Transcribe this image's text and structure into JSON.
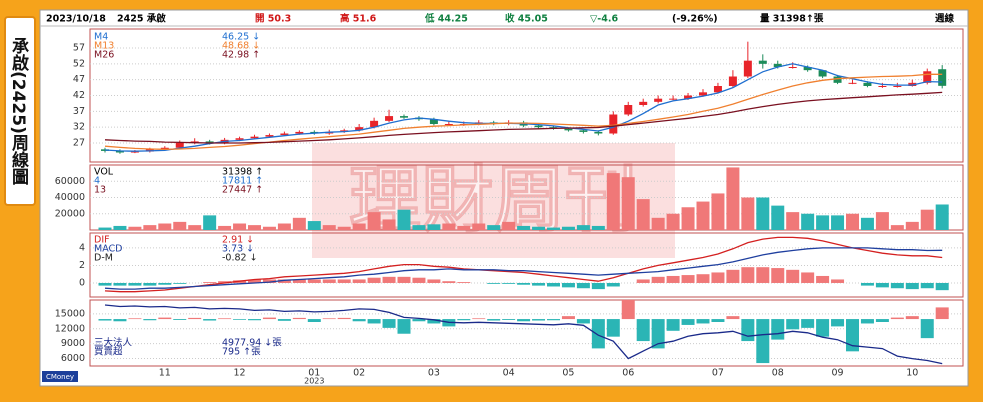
{
  "side_title": "承啟(2425)周線圖",
  "header": {
    "items": [
      {
        "text": "2023/10/18",
        "color": "#000000"
      },
      {
        "text": "2425 承啟",
        "color": "#000000"
      },
      {
        "text": "開 50.3",
        "color": "#d01818"
      },
      {
        "text": "高 51.6",
        "color": "#d01818"
      },
      {
        "text": "低 44.25",
        "color": "#108040"
      },
      {
        "text": "收 45.05",
        "color": "#108040"
      },
      {
        "text": "▽-4.6",
        "color": "#108040"
      },
      {
        "text": "(-9.26%)",
        "color": "#000000"
      },
      {
        "text": "量 31398↑張",
        "color": "#000000"
      },
      {
        "text": "週線",
        "color": "#000000"
      }
    ]
  },
  "watermark": "理財周刊",
  "logo": "CMoney",
  "chart_data": [
    {
      "type": "candlestick",
      "up_color": "#e8242a",
      "down_color": "#1c8c5a",
      "open": [
        25,
        24.5,
        24,
        24.3,
        25,
        25.5,
        27,
        27.5,
        27,
        28,
        28.5,
        29,
        29.5,
        30,
        30.5,
        30,
        30.5,
        31,
        32,
        34,
        35.5,
        35,
        34.5,
        33,
        33,
        33,
        33.5,
        33,
        33.5,
        32.5,
        32,
        31.5,
        31,
        30.5,
        30,
        36,
        39,
        40,
        41,
        41,
        42,
        43,
        45,
        48,
        53,
        52,
        51,
        51,
        50,
        48,
        46,
        46,
        45,
        45,
        45,
        46,
        50.3
      ],
      "high": [
        25.5,
        25,
        24.8,
        25.5,
        26,
        27.8,
        28.5,
        28,
        28.6,
        29,
        29.6,
        30,
        30.6,
        31,
        31,
        31.2,
        31.5,
        33,
        35,
        37.5,
        36,
        35.5,
        35,
        34,
        33.8,
        34.2,
        34,
        34.2,
        34,
        33,
        32.2,
        31.8,
        31.2,
        31,
        37,
        40,
        41,
        42,
        42,
        42.8,
        44,
        46,
        50,
        59,
        55,
        53,
        52.5,
        51.5,
        50,
        48.5,
        47,
        46.5,
        46,
        46,
        47,
        50.5,
        51.6
      ],
      "low": [
        24,
        23.6,
        23.8,
        24,
        24.6,
        25.2,
        26.6,
        26.5,
        26.6,
        27.6,
        28.2,
        28.6,
        29.2,
        29.6,
        29.6,
        29.6,
        30.2,
        30.6,
        31.6,
        33.6,
        34.6,
        34,
        32.6,
        32.4,
        32.4,
        32.6,
        32.6,
        32.6,
        32,
        31.6,
        31.2,
        30.6,
        30,
        29.4,
        29.6,
        35.5,
        38.5,
        39.5,
        40.5,
        40.6,
        41.6,
        42.6,
        44.5,
        47.5,
        50.5,
        50.5,
        50.5,
        49.5,
        47.5,
        45.6,
        45.6,
        44.6,
        44.4,
        44.5,
        44.8,
        45.5,
        44.25
      ],
      "close": [
        24.5,
        24,
        24.3,
        25,
        25.5,
        27,
        27.5,
        27,
        28,
        28.5,
        29,
        29.5,
        30,
        30.5,
        30,
        30.5,
        31,
        32,
        34,
        35.5,
        35,
        34.5,
        33,
        33,
        33,
        33.5,
        33,
        33.5,
        32.5,
        32,
        31.5,
        31,
        30.5,
        30,
        36,
        39,
        40,
        41,
        41,
        42,
        43,
        45,
        48,
        53,
        52,
        51,
        51,
        50,
        48,
        46,
        46,
        45,
        45,
        45,
        46,
        49.65,
        45.05
      ],
      "series": [
        {
          "name": "M4",
          "color": "#1f6fd0",
          "legend_value": "46.25 ↓",
          "values": [
            24.8,
            24.5,
            24.4,
            24.5,
            24.7,
            25.4,
            26,
            26.8,
            27.5,
            27.8,
            28.3,
            28.8,
            29.3,
            29.8,
            30.1,
            30.4,
            30.6,
            31,
            32,
            33.3,
            34.3,
            34.9,
            34.5,
            33.9,
            33.4,
            33.2,
            33.2,
            33.2,
            33.1,
            32.8,
            32.4,
            31.8,
            31.3,
            30.8,
            32,
            33.9,
            36.3,
            39,
            40.3,
            41,
            41.8,
            42.8,
            44.5,
            47,
            49.5,
            51,
            52,
            51,
            50,
            48.3,
            47.3,
            46.3,
            45.5,
            45.3,
            45.3,
            46.4,
            46.25
          ]
        },
        {
          "name": "M13",
          "color": "#f08030",
          "legend_value": "48.68 ↓",
          "values": [
            26,
            25.6,
            25.3,
            25.1,
            25,
            25.1,
            25.3,
            25.6,
            25.9,
            26.3,
            26.8,
            27.3,
            27.8,
            28.2,
            28.6,
            29,
            29.4,
            29.8,
            30.4,
            31,
            31.6,
            32,
            32.3,
            32.5,
            32.7,
            32.9,
            33.1,
            33.3,
            33.3,
            33.2,
            33,
            32.8,
            32.6,
            32.3,
            32.6,
            33.2,
            33.8,
            34.5,
            35.2,
            36,
            37,
            38,
            39.3,
            40.8,
            42.3,
            43.7,
            45,
            46,
            46.8,
            47.3,
            47.6,
            47.8,
            48,
            48.1,
            48.3,
            48.7,
            48.68
          ]
        },
        {
          "name": "M26",
          "color": "#7a1020",
          "legend_value": "42.98 ↑",
          "values": [
            28,
            27.8,
            27.6,
            27.5,
            27.3,
            27.2,
            27.1,
            27,
            27,
            27,
            27.1,
            27.2,
            27.4,
            27.6,
            27.8,
            28,
            28.3,
            28.6,
            29,
            29.4,
            29.7,
            30,
            30.3,
            30.5,
            30.7,
            30.9,
            31.1,
            31.3,
            31.4,
            31.5,
            31.6,
            31.7,
            31.8,
            31.9,
            32.3,
            32.8,
            33.3,
            33.8,
            34.3,
            34.8,
            35.4,
            36,
            36.8,
            37.7,
            38.5,
            39.2,
            39.8,
            40.3,
            40.7,
            41,
            41.3,
            41.6,
            41.9,
            42.2,
            42.4,
            42.7,
            42.98
          ]
        }
      ],
      "ylim": [
        21,
        63
      ],
      "yticks": [
        27,
        32,
        37,
        42,
        47,
        52,
        57
      ],
      "grid": true
    },
    {
      "type": "bar",
      "up_color": "#f07878",
      "down_color": "#2bb5b5",
      "values": [
        3000,
        5000,
        4000,
        6000,
        8000,
        10000,
        6000,
        18000,
        5000,
        8000,
        6000,
        4000,
        8000,
        15000,
        11000,
        6000,
        4000,
        8000,
        22000,
        13000,
        25000,
        6000,
        7000,
        8000,
        5000,
        8000,
        6000,
        10000,
        5000,
        4000,
        3000,
        4000,
        6000,
        5000,
        70000,
        65000,
        38000,
        15000,
        20000,
        28000,
        35000,
        45000,
        77000,
        40000,
        40000,
        30000,
        22000,
        20000,
        18000,
        18000,
        20000,
        15000,
        22000,
        6000,
        10000,
        25000,
        31398
      ],
      "legend": [
        {
          "name": "VOL",
          "text": "31398 ↑",
          "color": "#000000"
        },
        {
          "name": "4",
          "text": "17811 ↑",
          "color": "#1f6fd0"
        },
        {
          "name": "13",
          "text": "27447 ↑",
          "color": "#7a1020"
        }
      ],
      "ylim": [
        0,
        80000
      ],
      "yticks": [
        20000,
        40000,
        60000
      ],
      "grid": true
    },
    {
      "type": "macd",
      "up_color": "#f07878",
      "down_color": "#2bb5b5",
      "series": [
        {
          "name": "DIF",
          "color": "#d42020",
          "legend_value": "2.91 ↓",
          "values": [
            -0.9,
            -1,
            -1,
            -0.9,
            -0.8,
            -0.6,
            -0.4,
            -0.2,
            0,
            0.2,
            0.4,
            0.5,
            0.7,
            0.8,
            0.9,
            1,
            1.1,
            1.3,
            1.6,
            1.9,
            2.1,
            2.1,
            1.9,
            1.8,
            1.6,
            1.5,
            1.4,
            1.3,
            1.2,
            1,
            0.8,
            0.6,
            0.4,
            0.2,
            0.6,
            1.1,
            1.6,
            2,
            2.3,
            2.6,
            2.9,
            3.3,
            3.9,
            4.6,
            5,
            5.2,
            5.2,
            5.1,
            4.8,
            4.4,
            4,
            3.7,
            3.4,
            3.2,
            3.1,
            3.1,
            2.91
          ]
        },
        {
          "name": "MACD",
          "color": "#1f3f9f",
          "legend_value": "3.73 ↓",
          "values": [
            -0.6,
            -0.7,
            -0.7,
            -0.6,
            -0.6,
            -0.5,
            -0.4,
            -0.3,
            -0.2,
            -0.1,
            0,
            0.1,
            0.3,
            0.4,
            0.5,
            0.6,
            0.7,
            0.9,
            1,
            1.2,
            1.4,
            1.5,
            1.5,
            1.6,
            1.5,
            1.5,
            1.5,
            1.4,
            1.4,
            1.3,
            1.2,
            1.1,
            1,
            0.9,
            1,
            1.1,
            1.2,
            1.3,
            1.5,
            1.7,
            1.9,
            2.1,
            2.4,
            2.8,
            3.2,
            3.5,
            3.7,
            3.9,
            4,
            4,
            4,
            4,
            3.9,
            3.8,
            3.8,
            3.7,
            3.73
          ]
        },
        {
          "name": "D-M",
          "color": "#000000",
          "legend_value": "-0.82 ↓",
          "values": [
            -0.3,
            -0.3,
            -0.3,
            -0.3,
            -0.2,
            -0.1,
            0,
            0.1,
            0.2,
            0.3,
            0.4,
            0.4,
            0.4,
            0.4,
            0.4,
            0.4,
            0.4,
            0.4,
            0.6,
            0.7,
            0.7,
            0.6,
            0.4,
            0.2,
            0.1,
            0,
            -0.1,
            -0.1,
            -0.2,
            -0.3,
            -0.4,
            -0.5,
            -0.6,
            -0.7,
            -0.4,
            0,
            0.4,
            0.7,
            0.8,
            0.9,
            1,
            1.2,
            1.5,
            1.8,
            1.8,
            1.7,
            1.5,
            1.2,
            0.8,
            0.4,
            0,
            -0.3,
            -0.5,
            -0.6,
            -0.7,
            -0.6,
            -0.82
          ]
        }
      ],
      "ylim": [
        -1.6,
        5.7
      ],
      "yticks": [
        0,
        2,
        4
      ],
      "grid": true
    },
    {
      "type": "institutional",
      "up_color": "#f07878",
      "down_color": "#2bb5b5",
      "series": [
        {
          "name": "三大法人",
          "color": "#1a2a8a",
          "legend_value": "4977.94 ↓張",
          "values": [
            16800,
            16500,
            16600,
            16400,
            16500,
            16200,
            16300,
            16000,
            16100,
            16000,
            15700,
            15800,
            15500,
            15600,
            15400,
            15500,
            15700,
            16000,
            15900,
            15300,
            14300,
            14100,
            13800,
            13300,
            13200,
            13300,
            13200,
            13100,
            13000,
            12900,
            12800,
            13000,
            12700,
            10700,
            9500,
            6000,
            7500,
            9000,
            9500,
            10500,
            11000,
            11200,
            11500,
            10500,
            10800,
            11000,
            11500,
            11200,
            10300,
            9800,
            8600,
            8300,
            8000,
            6500,
            6000,
            5600,
            4977.94
          ]
        },
        {
          "name": "買賣超",
          "color": "#000000",
          "axis": "y2",
          "legend_value": "795 ↑張",
          "values": [
            -100,
            -150,
            50,
            -80,
            100,
            -60,
            80,
            -100,
            50,
            -50,
            -80,
            100,
            -120,
            80,
            -200,
            50,
            80,
            -150,
            -300,
            -600,
            -1000,
            -150,
            -300,
            -500,
            -80,
            50,
            -100,
            -60,
            -150,
            -100,
            -80,
            200,
            -300,
            -2000,
            -1200,
            1300,
            -1500,
            -2000,
            -800,
            -400,
            -300,
            -200,
            200,
            -1500,
            -3000,
            -1400,
            -700,
            -600,
            -1200,
            -500,
            -2200,
            -300,
            -200,
            100,
            200,
            -1300,
            795
          ]
        }
      ],
      "ylim": [
        4500,
        17800
      ],
      "yticks": [
        6000,
        9000,
        12000,
        15000
      ],
      "y2lim": [
        -3200,
        1300
      ],
      "grid": true,
      "categories": [
        null,
        null,
        null,
        null,
        "11",
        null,
        null,
        null,
        null,
        "12",
        null,
        null,
        null,
        null,
        "01",
        null,
        null,
        "02",
        null,
        null,
        null,
        null,
        "03",
        null,
        null,
        null,
        null,
        "04",
        null,
        null,
        null,
        "05",
        null,
        null,
        null,
        "06",
        null,
        null,
        null,
        null,
        null,
        "07",
        null,
        null,
        null,
        "08",
        null,
        null,
        null,
        "09",
        null,
        null,
        null,
        null,
        "10",
        null,
        null
      ],
      "x_sublabels": [
        null,
        null,
        null,
        null,
        null,
        null,
        null,
        null,
        null,
        null,
        null,
        null,
        null,
        null,
        "2023",
        null,
        null,
        null,
        null,
        null,
        null,
        null,
        null,
        null,
        null,
        null,
        null,
        null,
        null,
        null,
        null,
        null,
        null,
        null,
        null,
        null,
        null,
        null,
        null,
        null,
        null,
        null,
        null,
        null,
        null,
        null,
        null,
        null,
        null,
        null,
        null,
        null,
        null,
        null,
        null,
        null,
        null
      ]
    }
  ]
}
